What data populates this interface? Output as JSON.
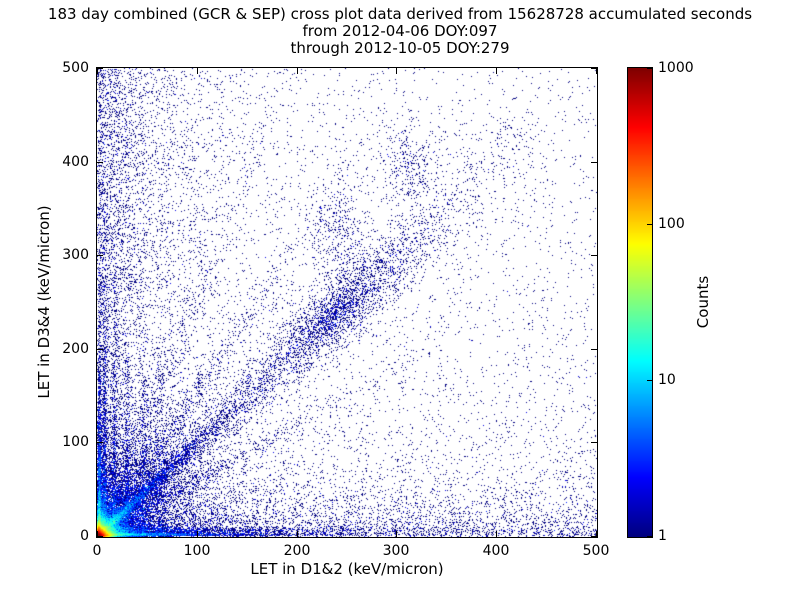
{
  "seed": 42,
  "title": "183 day combined (GCR & SEP) cross plot data derived from 15628728 accumulated seconds",
  "subtitle_from": "from 2012-04-06 DOY:097",
  "subtitle_through": "through 2012-10-05 DOY:279",
  "chart_data": {
    "type": "heatmap",
    "title": "183 day combined (GCR & SEP) cross plot data derived from 15628728 accumulated seconds",
    "xlabel": "LET in D1&2 (keV/micron)",
    "ylabel": "LET in D3&4 (keV/micron)",
    "xlim": [
      0,
      500
    ],
    "ylim": [
      0,
      500
    ],
    "xticks": [
      0,
      100,
      200,
      300,
      400,
      500
    ],
    "yticks": [
      0,
      100,
      200,
      300,
      400,
      500
    ],
    "grid": false,
    "background": "#ffffff",
    "axis_color": "#000000",
    "colorbar": {
      "label": "Counts",
      "scale": "log",
      "min": 1,
      "max": 1000,
      "ticks": [
        1,
        10,
        100,
        1000
      ],
      "colormap": "jet",
      "position": "right"
    },
    "features": [
      {
        "kind": "uniform",
        "n": 2400
      },
      {
        "kind": "expx_uniy",
        "n": 2600,
        "xs": 30
      },
      {
        "kind": "expx_uniy",
        "n": 2200,
        "xs": 110
      },
      {
        "kind": "expx_uniy",
        "n": 900,
        "xs": 60,
        "ymin": 250,
        "ymax": 500
      },
      {
        "kind": "unix_expy",
        "n": 2400,
        "ys": 25
      },
      {
        "kind": "unix_expy",
        "n": 2000,
        "ys": 110
      },
      {
        "kind": "expx_expy",
        "n": 6000,
        "xs": 45,
        "ys": 45
      },
      {
        "kind": "hotspot",
        "n": 26000,
        "s": 3.2
      },
      {
        "kind": "hotspot",
        "n": 9000,
        "s": 9
      },
      {
        "kind": "stripe",
        "n": 2000,
        "x": 2,
        "xsd": 1.0,
        "ys": 60
      },
      {
        "kind": "stripe",
        "n": 900,
        "x": 7,
        "xsd": 1.2,
        "ys": 110
      },
      {
        "kind": "stripe",
        "n": 550,
        "x": 17,
        "xsd": 1.5,
        "ys": 95
      },
      {
        "kind": "stripe",
        "n": 420,
        "x": 30,
        "xsd": 1.8,
        "ys": 85
      },
      {
        "kind": "stripe",
        "n": 330,
        "x": 46,
        "xsd": 2.0,
        "ys": 75
      },
      {
        "kind": "stripe",
        "n": 260,
        "x": 63,
        "xsd": 2.2,
        "ys": 65
      },
      {
        "kind": "hstripe",
        "n": 2000,
        "y": 2,
        "ysd": 1.0,
        "xs": 60
      },
      {
        "kind": "hstripe",
        "n": 1600,
        "y": 6,
        "ysd": 2.5,
        "xs": 120
      },
      {
        "kind": "diag_exp",
        "n": 1500,
        "scale": 25,
        "sigma0": 1.2,
        "sigslope": 0.02
      },
      {
        "kind": "diag_exp",
        "n": 3200,
        "scale": 70,
        "sigma0": 2.5,
        "sigslope": 0.05
      },
      {
        "kind": "diag_uni",
        "n": 1500,
        "max": 430,
        "sigma0": 6,
        "sigslope": 0.05
      },
      {
        "kind": "diag_gauss",
        "n": 1600,
        "mu": 250,
        "sd": 45,
        "sigma0": 16,
        "sigslope": 0
      },
      {
        "kind": "diag_gauss",
        "n": 500,
        "mu": 235,
        "sd": 15,
        "sigma0": 9,
        "sigslope": 0
      },
      {
        "kind": "blob",
        "n": 380,
        "cx": 240,
        "cy": 325,
        "sx": 16,
        "sy": 28
      },
      {
        "kind": "blob",
        "n": 300,
        "cx": 312,
        "cy": 398,
        "sx": 14,
        "sy": 22
      },
      {
        "kind": "fan",
        "n": 1400,
        "slope": 1.55,
        "sigma": 6,
        "scale": 60
      },
      {
        "kind": "fan",
        "n": 1100,
        "slope": 0.6,
        "sigma": 5,
        "scale": 70
      },
      {
        "kind": "fan",
        "n": 700,
        "slope": 2.6,
        "sigma": 7,
        "scale": 55
      }
    ]
  }
}
